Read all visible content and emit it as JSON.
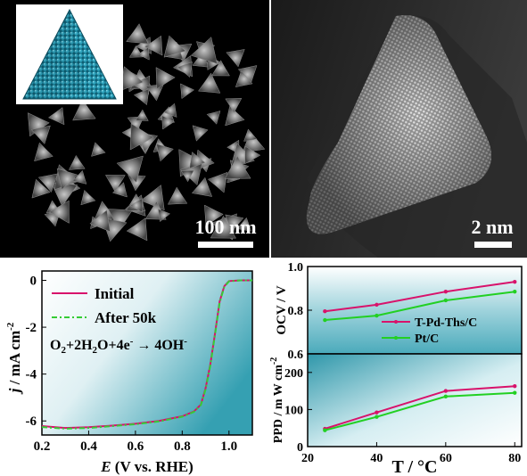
{
  "panel_a": {
    "scale_label": "100 nm"
  },
  "panel_b": {
    "scale_label": "2 nm"
  },
  "colors": {
    "initial": "#d8126b",
    "after": "#35cc35",
    "tpd": "#d8126b",
    "ptc": "#22d022",
    "teal_bg": "#3b9fb0"
  },
  "chart_data": [
    {
      "type": "line",
      "title": "",
      "xlabel": "E (V vs. RHE)",
      "ylabel": "j / mA cm-2",
      "xlim": [
        0.2,
        1.1
      ],
      "ylim": [
        -6.6,
        0.4
      ],
      "x_ticks": [
        "0.2",
        "0.4",
        "0.6",
        "0.8",
        "1.0"
      ],
      "y_ticks": [
        "0",
        "-2",
        "-4",
        "-6"
      ],
      "annotation": "O2+2H2O+4e- → 4OH-",
      "legend": "top-left",
      "series": [
        {
          "name": "Initial",
          "style": "solid",
          "x": [
            0.2,
            0.3,
            0.4,
            0.5,
            0.6,
            0.7,
            0.8,
            0.85,
            0.88,
            0.9,
            0.92,
            0.94,
            0.96,
            0.98,
            1.0,
            1.05,
            1.1
          ],
          "y": [
            -6.22,
            -6.3,
            -6.27,
            -6.2,
            -6.12,
            -6.0,
            -5.8,
            -5.6,
            -5.3,
            -4.6,
            -3.6,
            -2.3,
            -0.9,
            -0.25,
            -0.03,
            0.0,
            0.0
          ]
        },
        {
          "name": "After 50k",
          "style": "dash-dot",
          "x": [
            0.2,
            0.3,
            0.4,
            0.5,
            0.6,
            0.7,
            0.8,
            0.85,
            0.88,
            0.9,
            0.92,
            0.94,
            0.96,
            0.98,
            1.0,
            1.05,
            1.1
          ],
          "y": [
            -6.26,
            -6.33,
            -6.3,
            -6.22,
            -6.14,
            -6.02,
            -5.82,
            -5.62,
            -5.32,
            -4.65,
            -3.65,
            -2.35,
            -0.95,
            -0.28,
            -0.04,
            0.0,
            0.0
          ]
        }
      ]
    },
    {
      "type": "line",
      "title": "",
      "xlabel": "",
      "ylabel": "OCV / V",
      "xlim": [
        20,
        82
      ],
      "ylim": [
        0.6,
        1.0
      ],
      "y_ticks": [
        "0.6",
        "0.8",
        "1.0"
      ],
      "legend": "bottom-right",
      "series": [
        {
          "name": "T-Pd-Ths/C",
          "x": [
            25,
            40,
            60,
            80
          ],
          "y": [
            0.795,
            0.825,
            0.885,
            0.93
          ]
        },
        {
          "name": "Pt/C",
          "x": [
            25,
            40,
            60,
            80
          ],
          "y": [
            0.755,
            0.775,
            0.845,
            0.885
          ]
        }
      ]
    },
    {
      "type": "line",
      "title": "",
      "xlabel": "T / °C",
      "ylabel": "PPD / m W cm-2",
      "xlim": [
        20,
        82
      ],
      "ylim": [
        0,
        250
      ],
      "x_ticks": [
        "20",
        "40",
        "60",
        "80"
      ],
      "y_ticks": [
        "0",
        "100",
        "200"
      ],
      "series": [
        {
          "name": "T-Pd-Ths/C",
          "x": [
            25,
            40,
            60,
            80
          ],
          "y": [
            48,
            92,
            150,
            163
          ]
        },
        {
          "name": "Pt/C",
          "x": [
            25,
            40,
            60,
            80
          ],
          "y": [
            44,
            80,
            135,
            145
          ]
        }
      ]
    }
  ]
}
